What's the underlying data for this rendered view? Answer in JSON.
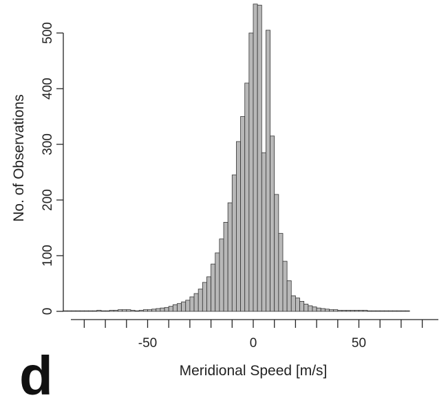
{
  "panel_label": "d",
  "chart_data": {
    "type": "bar",
    "subtype": "histogram",
    "title": "",
    "xlabel": "Meridional Speed [m/s]",
    "ylabel": "No. of Observations",
    "xlim": [
      -85,
      85
    ],
    "ylim": [
      0,
      550
    ],
    "x_ticks": [
      -50,
      0,
      50
    ],
    "y_ticks": [
      0,
      100,
      200,
      300,
      400,
      500
    ],
    "x_tick_labels": [
      "-50",
      "0",
      "50"
    ],
    "y_tick_labels": [
      "0",
      "100",
      "200",
      "300",
      "400",
      "500"
    ],
    "bin_width": 2,
    "bar_color": "#b8b8b8",
    "bins_start": [
      -90,
      -88,
      -86,
      -84,
      -82,
      -80,
      -78,
      -76,
      -74,
      -72,
      -70,
      -68,
      -66,
      -64,
      -62,
      -60,
      -58,
      -56,
      -54,
      -52,
      -50,
      -48,
      -46,
      -44,
      -42,
      -40,
      -38,
      -36,
      -34,
      -32,
      -30,
      -28,
      -26,
      -24,
      -22,
      -20,
      -18,
      -16,
      -14,
      -12,
      -10,
      -8,
      -6,
      -4,
      -2,
      0,
      2,
      4,
      6,
      8,
      10,
      12,
      14,
      16,
      18,
      20,
      22,
      24,
      26,
      28,
      30,
      32,
      34,
      36,
      38,
      40,
      42,
      44,
      46,
      48,
      50,
      52,
      54,
      56,
      58,
      60,
      62,
      64,
      66,
      68,
      70,
      72
    ],
    "counts": [
      1,
      1,
      1,
      1,
      1,
      1,
      1,
      1,
      2,
      1,
      1,
      2,
      2,
      3,
      3,
      3,
      2,
      1,
      2,
      3,
      3,
      4,
      5,
      6,
      7,
      9,
      12,
      14,
      17,
      20,
      26,
      32,
      40,
      52,
      62,
      85,
      105,
      130,
      160,
      195,
      245,
      305,
      350,
      410,
      500,
      552,
      550,
      285,
      505,
      315,
      210,
      140,
      90,
      55,
      28,
      24,
      18,
      13,
      10,
      8,
      6,
      5,
      4,
      3,
      3,
      2,
      2,
      2,
      2,
      2,
      2,
      2,
      1,
      1,
      1,
      1,
      1,
      1,
      1,
      1,
      1,
      1
    ],
    "grid": false,
    "legend": "none"
  }
}
